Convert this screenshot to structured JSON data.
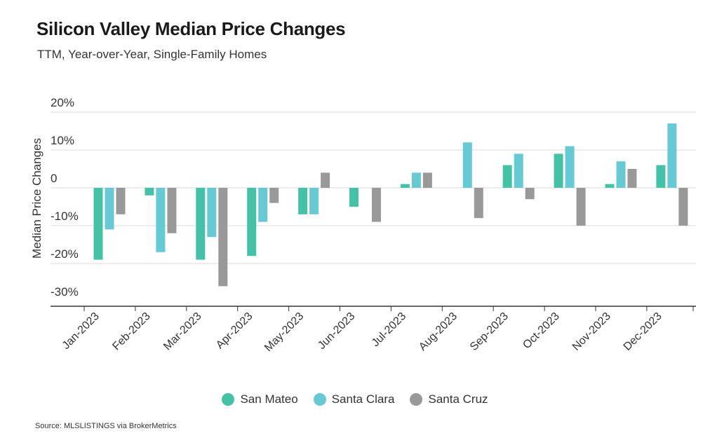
{
  "title": "Silicon Valley Median Price Changes",
  "subtitle": "TTM, Year-over-Year, Single-Family Homes",
  "source": "Source:  MLSLISTINGS via BrokerMetrics",
  "colors": {
    "San Mateo": "#45c1a8",
    "Santa Clara": "#67c9d3",
    "Santa Cruz": "#999999",
    "grid": "#d9d9d9",
    "axis": "#333333"
  },
  "chart_data": {
    "type": "bar",
    "title": "Silicon Valley Median Price Changes",
    "subtitle": "TTM, Year-over-Year, Single-Family Homes",
    "xlabel": "",
    "ylabel": "Median Price Changes",
    "ylim": [
      -30,
      20
    ],
    "yticks": [
      20,
      10,
      0,
      -10,
      -20,
      -30
    ],
    "ytick_labels": [
      "20%",
      "10%",
      "0",
      "-10%",
      "-20%",
      "-30%"
    ],
    "grid": true,
    "legend_position": "bottom",
    "categories": [
      "Jan-2023",
      "Feb-2023",
      "Mar-2023",
      "Apr-2023",
      "May-2023",
      "Jun-2023",
      "Jul-2023",
      "Aug-2023",
      "Sep-2023",
      "Oct-2023",
      "Nov-2023",
      "Dec-2023"
    ],
    "series": [
      {
        "name": "San Mateo",
        "values": [
          -19,
          -2,
          -19,
          -18,
          -7,
          -5,
          1,
          0,
          6,
          9,
          1,
          6
        ]
      },
      {
        "name": "Santa Clara",
        "values": [
          -11,
          -17,
          -13,
          -9,
          -7,
          0,
          4,
          12,
          9,
          11,
          7,
          17
        ]
      },
      {
        "name": "Santa Cruz",
        "values": [
          -7,
          -12,
          -26,
          -4,
          4,
          -9,
          4,
          -8,
          -3,
          -10,
          5,
          -10
        ]
      }
    ]
  }
}
